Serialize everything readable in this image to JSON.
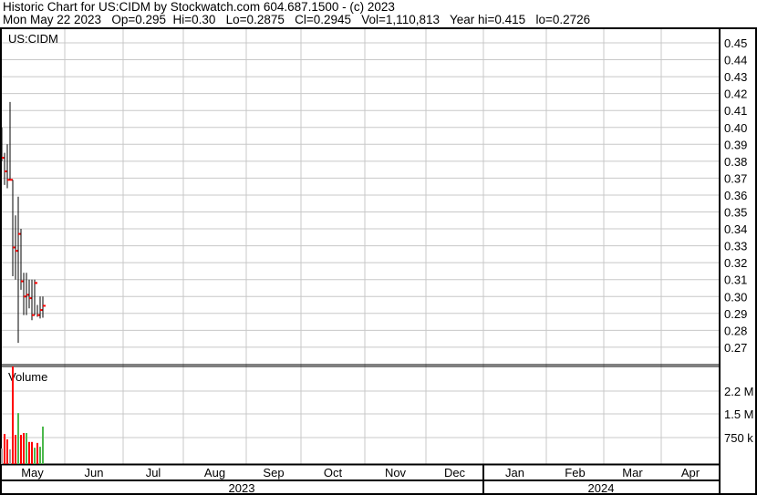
{
  "header": {
    "title": "Historic Chart for US:CIDM by Stockwatch.com 604.687.1500 - (c) 2023",
    "quote": "Mon May 22 2023   Op=0.295  Hi=0.30   Lo=0.2875   Cl=0.2945   Vol=1,110,813   Year hi=0.415   lo=0.2726"
  },
  "colors": {
    "up": "#4cb84c",
    "down": "#ff0000",
    "neutral": "#a0a0a0",
    "close_tick": "#ff0000",
    "grid": "#c8c8c8"
  },
  "chart_data": [
    {
      "type": "ohlc",
      "title": "US:CIDM",
      "ylim": [
        0.265,
        0.458
      ],
      "yticks": [
        "0.45",
        "0.44",
        "0.43",
        "0.42",
        "0.41",
        "0.40",
        "0.39",
        "0.38",
        "0.37",
        "0.36",
        "0.35",
        "0.34",
        "0.33",
        "0.32",
        "0.31",
        "0.30",
        "0.29",
        "0.28",
        "0.27"
      ],
      "grid": true,
      "dates": [
        "May 1",
        "May 2",
        "May 3",
        "May 4",
        "May 5",
        "May 8",
        "May 9",
        "May 10",
        "May 11",
        "May 12",
        "May 15",
        "May 16",
        "May 17",
        "May 18",
        "May 19",
        "May 22"
      ],
      "high": [
        0.4,
        0.385,
        0.39,
        0.415,
        0.369,
        0.348,
        0.359,
        0.34,
        0.314,
        0.314,
        0.31,
        0.31,
        0.31,
        0.295,
        0.3,
        0.3
      ],
      "low": [
        0.38,
        0.366,
        0.364,
        0.369,
        0.312,
        0.31,
        0.2726,
        0.304,
        0.289,
        0.289,
        0.293,
        0.286,
        0.289,
        0.288,
        0.287,
        0.2875
      ],
      "close": [
        0.382,
        0.374,
        0.369,
        0.369,
        0.329,
        0.327,
        0.337,
        0.309,
        0.3,
        0.301,
        0.299,
        0.289,
        0.308,
        0.289,
        0.292,
        0.2945
      ]
    },
    {
      "type": "bar",
      "title": "Volume",
      "yticks": [
        "2.2 M",
        "1.5 M",
        "750 k"
      ],
      "ylim": [
        0,
        3.0
      ],
      "unit": "M",
      "grid": true,
      "values": [
        0.43,
        0.88,
        0.71,
        0.4,
        3.0,
        0.85,
        1.53,
        0.85,
        0.91,
        0.91,
        0.63,
        0.63,
        0.45,
        0.6,
        0.48,
        1.11
      ],
      "colors": [
        "neutral",
        "down",
        "down",
        "neutral",
        "down",
        "down",
        "up",
        "down",
        "down",
        "up",
        "down",
        "down",
        "up",
        "down",
        "up",
        "up"
      ]
    }
  ],
  "xaxis": {
    "months": [
      "May",
      "Jun",
      "Jul",
      "Aug",
      "Sep",
      "Oct",
      "Nov",
      "Dec",
      "Jan",
      "Feb",
      "Mar",
      "Apr"
    ],
    "years": [
      "2023",
      "2024"
    ]
  }
}
